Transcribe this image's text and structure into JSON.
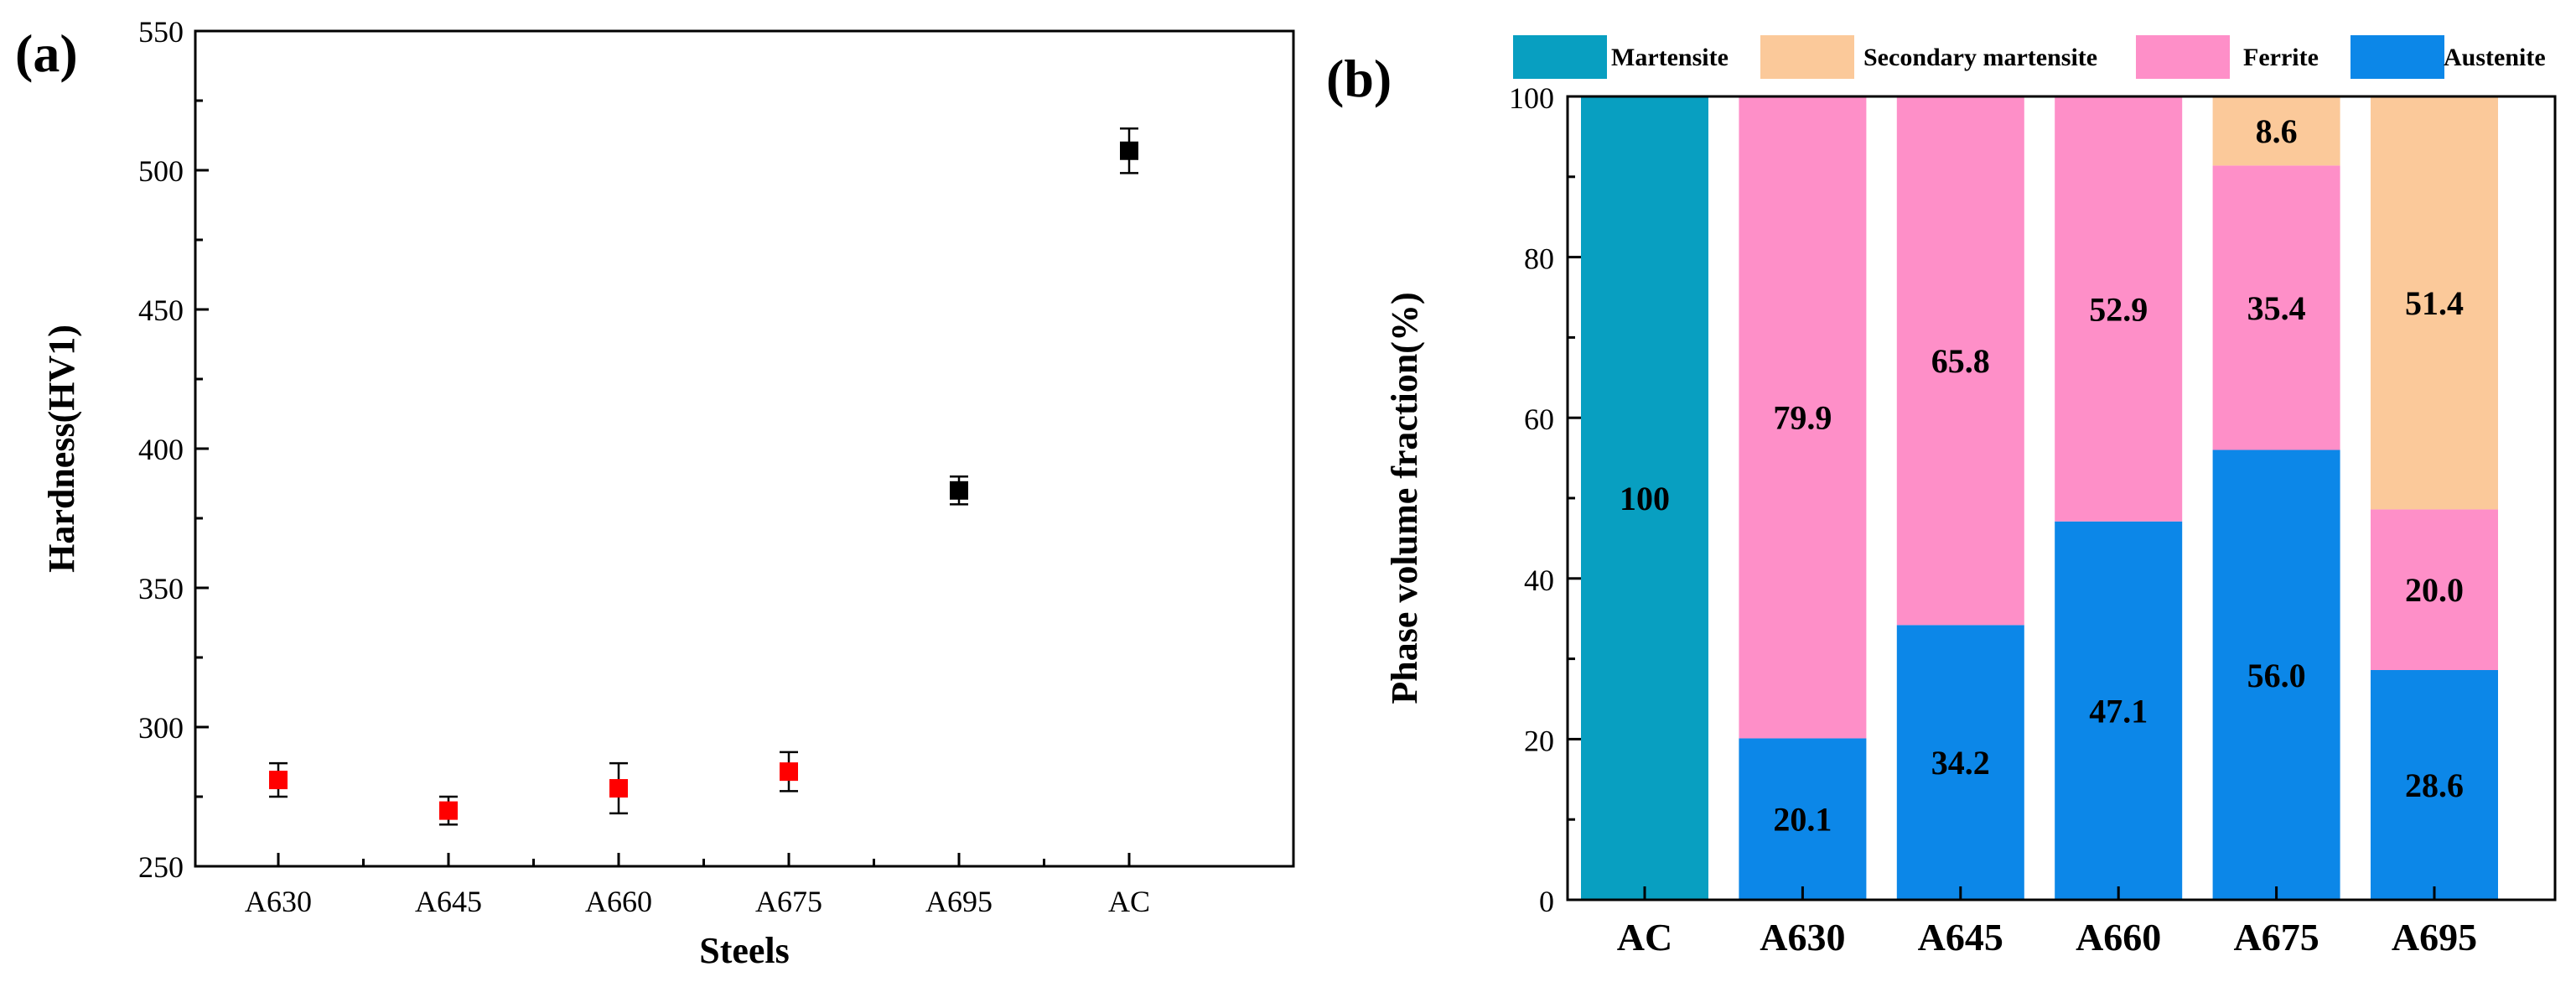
{
  "colors": {
    "square_red": "#ff0000",
    "square_black": "#000000",
    "martensite": "#089fc1",
    "secondary_martensite": "#fbc99a",
    "ferrite": "#fe8fc8",
    "austenite": "#0c87e8"
  },
  "chart_data": [
    {
      "type": "scatter",
      "panel_label": "(a)",
      "title": "",
      "xlabel": "Steels",
      "ylabel": "Hardness(HV1)",
      "categories": [
        "A630",
        "A645",
        "A660",
        "A675",
        "A695",
        "AC"
      ],
      "values": [
        281,
        270,
        278,
        284,
        385,
        507
      ],
      "errors": [
        6,
        5,
        9,
        7,
        5,
        8
      ],
      "point_colors": [
        "#ff0000",
        "#ff0000",
        "#ff0000",
        "#ff0000",
        "#000000",
        "#000000"
      ],
      "ylim": [
        250,
        550
      ],
      "yticks": [
        250,
        300,
        350,
        400,
        450,
        500,
        550
      ],
      "grid": false
    },
    {
      "type": "bar",
      "stacked": true,
      "panel_label": "(b)",
      "title": "",
      "xlabel": "",
      "ylabel": "Phase volume fraction(%)",
      "categories": [
        "AC",
        "A630",
        "A645",
        "A660",
        "A675",
        "A695"
      ],
      "ylim": [
        0,
        100
      ],
      "yticks": [
        0,
        20,
        40,
        60,
        80,
        100
      ],
      "legend_position": "top",
      "grid": false,
      "series": [
        {
          "name": "Austenite",
          "color": "#0c87e8",
          "values": [
            0,
            20.1,
            34.2,
            47.1,
            56.0,
            28.6
          ],
          "labels": [
            "",
            "20.1",
            "34.2",
            "47.1",
            "56.0",
            "28.6"
          ]
        },
        {
          "name": "Ferrite",
          "color": "#fe8fc8",
          "values": [
            0,
            79.9,
            65.8,
            52.9,
            35.4,
            20.0
          ],
          "labels": [
            "",
            "79.9",
            "65.8",
            "52.9",
            "35.4",
            "20.0"
          ]
        },
        {
          "name": "Secondary martensite",
          "color": "#fbc99a",
          "values": [
            0,
            0,
            0,
            0,
            8.6,
            51.4
          ],
          "labels": [
            "",
            "",
            "",
            "",
            "8.6",
            "51.4"
          ]
        },
        {
          "name": "Martensite",
          "color": "#089fc1",
          "values": [
            100,
            0,
            0,
            0,
            0,
            0
          ],
          "labels": [
            "100",
            "",
            "",
            "",
            "",
            ""
          ]
        }
      ],
      "legend_order": [
        "Martensite",
        "Secondary martensite",
        "Ferrite",
        "Austenite"
      ]
    }
  ]
}
